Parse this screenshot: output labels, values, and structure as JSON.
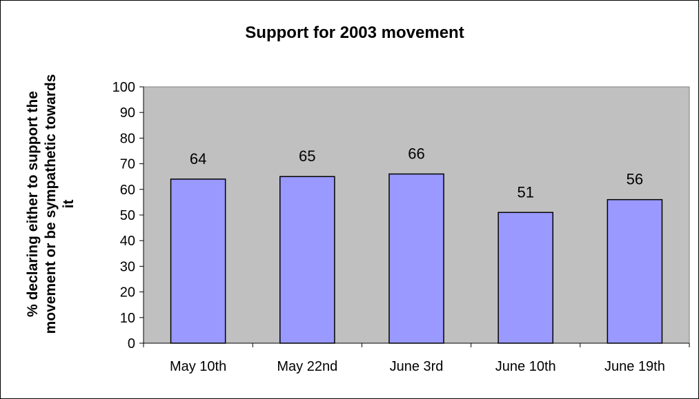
{
  "chart_data": {
    "type": "bar",
    "title": "Support for 2003 movement",
    "ylabel_lines": [
      "% declaring either to support the",
      "movement or be sympathetic towards",
      "it"
    ],
    "xlabel": "",
    "categories": [
      "May 10th",
      "May 22nd",
      "June 3rd",
      "June 10th",
      "June 19th"
    ],
    "values": [
      64,
      65,
      66,
      51,
      56
    ],
    "data_labels": [
      "64",
      "65",
      "66",
      "51",
      "56"
    ],
    "ylim": [
      0,
      100
    ],
    "yticks": [
      0,
      10,
      20,
      30,
      40,
      50,
      60,
      70,
      80,
      90,
      100
    ],
    "ytick_labels": [
      "0",
      "10",
      "20",
      "30",
      "40",
      "50",
      "60",
      "70",
      "80",
      "90",
      "100"
    ],
    "grid": false,
    "legend": "none",
    "colors": {
      "bar_fill": "#9999FF",
      "bar_stroke": "#000000",
      "plot_background": "#C0C0C0",
      "axis": "#000000",
      "page_background": "#FFFFFF"
    }
  }
}
